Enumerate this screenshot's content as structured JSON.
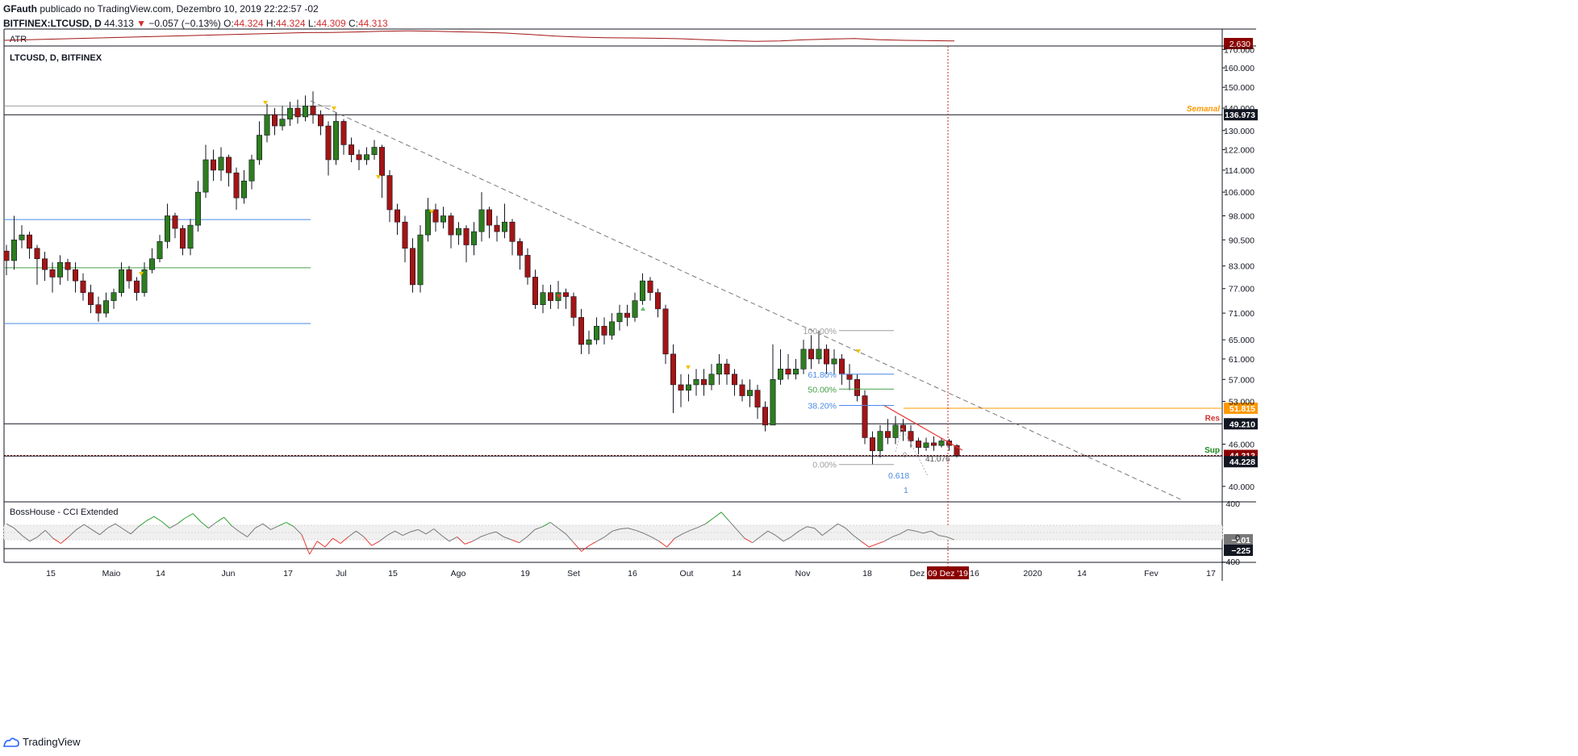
{
  "header": {
    "author": "GFauth",
    "published": "publicado no TradingView.com, Dezembro 10, 2019 22:22:57 -02",
    "symbol": "BITFINEX:LTCUSD, D",
    "last": "44.313",
    "change_arrow": "▼",
    "change": "−0.057 (−0.13%)",
    "o_label": "O:",
    "o": "44.324",
    "h_label": "H:",
    "h": "44.324",
    "l_label": "L:",
    "l": "44.309",
    "c_label": "C:",
    "c": "44.313"
  },
  "footer": {
    "brand": "TradingView",
    "logo_icon": "tradingview-logo-icon"
  },
  "colors": {
    "up": "#2e7d1f",
    "down": "#a31515",
    "grid": "#e0e3eb",
    "axis": "#131722",
    "support_line": "#4a8ae6",
    "mid_line": "#43a047",
    "orange": "#ff9800",
    "dark_red": "#8b0000",
    "cci": "#787878",
    "cci_up": "#2e9e2e",
    "cci_down": "#e53935"
  },
  "chart_data": [
    {
      "type": "line",
      "title": "ATR",
      "series": [
        {
          "name": "ATR",
          "values": [
            7.8,
            7.9,
            8.2,
            8.6,
            8.9,
            8.7,
            8.3,
            8.0,
            7.5,
            6.6,
            5.6,
            5.0,
            4.6,
            4.5,
            4.3,
            4.0,
            3.4,
            2.8,
            2.4,
            2.6,
            3.4,
            3.8,
            4.1,
            3.4,
            3.0,
            2.8,
            2.63
          ]
        }
      ],
      "last_value_label": "2.630"
    },
    {
      "type": "candlestick",
      "title": "LTCUSD, D, BITFINEX",
      "yscale": "log",
      "ylim": [
        38,
        172
      ],
      "y_ticks": [
        "170.000",
        "160.000",
        "150.000",
        "140.000",
        "130.000",
        "122.000",
        "114.000",
        "106.000",
        "98.000",
        "90.500",
        "83.000",
        "77.000",
        "71.000",
        "65.000",
        "61.000",
        "57.000",
        "53.000",
        "46.000",
        "40.000"
      ],
      "x_ticks": [
        "15",
        "Maio",
        "14",
        "Jun",
        "17",
        "Jul",
        "15",
        "Ago",
        "19",
        "Set",
        "16",
        "Out",
        "14",
        "Nov",
        "18",
        "Dez",
        "16",
        "2020",
        "14",
        "Fev",
        "17"
      ],
      "cursor_date_label": "09 Dez '19",
      "price_labels": [
        {
          "value": 136.973,
          "text": "136.973",
          "color": "#131722",
          "tag": "Semanal",
          "tag_color": "#ff9800"
        },
        {
          "value": 51.815,
          "text": "51.815",
          "color": "#ff9800"
        },
        {
          "value": 49.21,
          "text": "49.210",
          "color": "#131722",
          "tag": "Res",
          "tag_color": "#d32f2f"
        },
        {
          "value": 44.313,
          "text": "44.313",
          "color": "#8b0000"
        },
        {
          "value": 44.228,
          "text": "44.228",
          "color": "#131722",
          "tag": "Sup",
          "tag_color": "#1b8a1b"
        }
      ],
      "horizontal_levels": [
        {
          "value": 96.8,
          "color": "#4a8ae6"
        },
        {
          "value": 82.5,
          "color": "#43a047"
        },
        {
          "value": 68.6,
          "color": "#4a8ae6"
        }
      ],
      "fib_levels": [
        {
          "label": "100.00%",
          "value": 67.0,
          "color": "#9e9e9e"
        },
        {
          "label": "61.80%",
          "value": 58.0,
          "color": "#4a8ae6"
        },
        {
          "label": "50.00%",
          "value": 55.2,
          "color": "#43a047"
        },
        {
          "label": "38.20%",
          "value": 52.3,
          "color": "#4a8ae6"
        },
        {
          "label": "0.00%",
          "value": 43.0,
          "color": "#9e9e9e"
        }
      ],
      "annotations": [
        "41.076",
        "0.618",
        "1",
        "0"
      ],
      "candles": [
        [
          87.2,
          84.5,
          89.0,
          80.5
        ],
        [
          84.5,
          90.5,
          98.0,
          82.0
        ],
        [
          90.5,
          92.0,
          95.0,
          88.0
        ],
        [
          92.0,
          88.0,
          93.0,
          85.0
        ],
        [
          88.0,
          85.0,
          89.0,
          78.0
        ],
        [
          85.0,
          82.0,
          87.0,
          79.0
        ],
        [
          82.0,
          80.0,
          84.0,
          76.0
        ],
        [
          80.0,
          84.0,
          86.0,
          78.0
        ],
        [
          84.0,
          82.0,
          85.0,
          79.0
        ],
        [
          82.0,
          79.0,
          84.0,
          76.0
        ],
        [
          79.0,
          76.0,
          81.0,
          74.0
        ],
        [
          76.0,
          73.0,
          78.0,
          71.0
        ],
        [
          73.0,
          71.0,
          75.0,
          69.0
        ],
        [
          71.0,
          74.0,
          76.0,
          70.0
        ],
        [
          74.0,
          76.0,
          77.0,
          72.0
        ],
        [
          76.0,
          82.0,
          84.0,
          75.0
        ],
        [
          82.0,
          79.0,
          83.0,
          77.0
        ],
        [
          79.0,
          76.0,
          80.0,
          74.0
        ],
        [
          76.0,
          82.0,
          84.0,
          75.0
        ],
        [
          82.0,
          85.0,
          88.0,
          81.0
        ],
        [
          85.0,
          90.0,
          92.0,
          84.0
        ],
        [
          90.0,
          98.0,
          102.0,
          88.0
        ],
        [
          98.0,
          94.0,
          99.0,
          91.0
        ],
        [
          94.0,
          88.0,
          95.0,
          86.0
        ],
        [
          88.0,
          95.0,
          97.0,
          86.0
        ],
        [
          95.0,
          106.0,
          110.0,
          93.0
        ],
        [
          106.0,
          118.0,
          124.0,
          104.0
        ],
        [
          118.0,
          114.0,
          122.0,
          110.0
        ],
        [
          114.0,
          119.0,
          123.0,
          110.0
        ],
        [
          119.0,
          113.0,
          120.0,
          108.0
        ],
        [
          113.0,
          104.0,
          115.0,
          100.0
        ],
        [
          104.0,
          110.0,
          114.0,
          102.0
        ],
        [
          110.0,
          118.0,
          120.0,
          107.0
        ],
        [
          118.0,
          128.0,
          134.0,
          116.0
        ],
        [
          128.0,
          137.0,
          142.0,
          125.0
        ],
        [
          137.0,
          132.0,
          140.0,
          128.0
        ],
        [
          132.0,
          135.0,
          141.0,
          130.0
        ],
        [
          135.0,
          140.0,
          143.0,
          132.0
        ],
        [
          140.0,
          136.0,
          144.0,
          133.0
        ],
        [
          136.0,
          141.0,
          146.0,
          134.0
        ],
        [
          141.0,
          137.0,
          148.0,
          133.0
        ],
        [
          137.0,
          132.0,
          139.0,
          128.0
        ],
        [
          132.0,
          118.0,
          134.0,
          112.0
        ],
        [
          118.0,
          134.0,
          138.0,
          116.0
        ],
        [
          134.0,
          124.0,
          135.0,
          120.0
        ],
        [
          124.0,
          120.0,
          127.0,
          117.0
        ],
        [
          120.0,
          118.0,
          122.0,
          114.0
        ],
        [
          118.0,
          120.0,
          123.0,
          116.0
        ],
        [
          120.0,
          123.0,
          126.0,
          118.0
        ],
        [
          123.0,
          112.0,
          124.0,
          104.0
        ],
        [
          112.0,
          100.0,
          114.0,
          96.0
        ],
        [
          100.0,
          96.0,
          102.0,
          92.0
        ],
        [
          96.0,
          88.0,
          98.0,
          84.0
        ],
        [
          88.0,
          78.0,
          91.0,
          76.0
        ],
        [
          78.0,
          92.0,
          95.0,
          76.0
        ],
        [
          92.0,
          100.0,
          104.0,
          90.0
        ],
        [
          100.0,
          96.0,
          102.0,
          93.0
        ],
        [
          96.0,
          98.0,
          101.0,
          94.0
        ],
        [
          98.0,
          92.0,
          99.0,
          88.0
        ],
        [
          92.0,
          94.0,
          96.0,
          89.0
        ],
        [
          94.0,
          89.0,
          95.0,
          84.0
        ],
        [
          89.0,
          93.0,
          96.0,
          86.0
        ],
        [
          93.0,
          100.0,
          106.0,
          90.0
        ],
        [
          100.0,
          95.0,
          101.0,
          91.0
        ],
        [
          95.0,
          93.0,
          98.0,
          90.0
        ],
        [
          93.0,
          96.0,
          102.0,
          91.0
        ],
        [
          96.0,
          90.0,
          97.0,
          86.0
        ],
        [
          90.0,
          86.0,
          91.0,
          82.0
        ],
        [
          86.0,
          80.0,
          88.0,
          78.0
        ],
        [
          80.0,
          73.0,
          82.0,
          72.0
        ],
        [
          73.0,
          76.0,
          78.0,
          71.0
        ],
        [
          76.0,
          74.0,
          78.0,
          72.0
        ],
        [
          74.0,
          76.0,
          79.0,
          72.0
        ],
        [
          76.0,
          75.0,
          77.0,
          72.0
        ],
        [
          75.0,
          70.0,
          76.0,
          68.0
        ],
        [
          70.0,
          64.0,
          72.0,
          62.0
        ],
        [
          64.0,
          65.0,
          67.0,
          62.0
        ],
        [
          65.0,
          68.0,
          70.0,
          64.0
        ],
        [
          68.0,
          66.0,
          70.0,
          64.0
        ],
        [
          66.0,
          69.0,
          71.0,
          65.0
        ],
        [
          69.0,
          71.0,
          73.0,
          67.0
        ],
        [
          71.0,
          70.0,
          73.0,
          68.0
        ],
        [
          70.0,
          74.0,
          76.0,
          69.0
        ],
        [
          74.0,
          79.0,
          81.0,
          73.0
        ],
        [
          79.0,
          76.0,
          80.0,
          74.0
        ],
        [
          76.0,
          72.0,
          77.0,
          70.0
        ],
        [
          72.0,
          62.0,
          73.0,
          60.0
        ],
        [
          62.0,
          56.0,
          64.0,
          51.0
        ],
        [
          56.0,
          55.0,
          58.0,
          52.0
        ],
        [
          55.0,
          56.0,
          58.0,
          53.0
        ],
        [
          56.0,
          57.0,
          59.0,
          54.0
        ],
        [
          57.0,
          56.0,
          59.0,
          54.0
        ],
        [
          56.0,
          58.0,
          60.0,
          55.0
        ],
        [
          58.0,
          60.0,
          62.0,
          56.0
        ],
        [
          60.0,
          58.0,
          61.0,
          56.0
        ],
        [
          58.0,
          56.0,
          59.0,
          54.0
        ],
        [
          56.0,
          54.0,
          57.0,
          53.0
        ],
        [
          54.0,
          55.0,
          57.0,
          52.0
        ],
        [
          55.0,
          52.0,
          56.0,
          50.0
        ],
        [
          52.0,
          49.0,
          53.0,
          48.0
        ],
        [
          49.0,
          57.0,
          64.0,
          49.0
        ],
        [
          57.0,
          59.0,
          63.0,
          56.0
        ],
        [
          59.0,
          58.0,
          62.0,
          57.0
        ],
        [
          58.0,
          59.0,
          61.0,
          57.0
        ],
        [
          59.0,
          63.0,
          65.0,
          58.0
        ],
        [
          63.0,
          61.0,
          66.0,
          59.0
        ],
        [
          61.0,
          63.0,
          67.0,
          60.0
        ],
        [
          63.0,
          60.0,
          64.0,
          58.0
        ],
        [
          60.0,
          61.0,
          63.0,
          58.0
        ],
        [
          61.0,
          58.0,
          62.0,
          56.0
        ],
        [
          58.0,
          57.0,
          60.0,
          55.0
        ],
        [
          57.0,
          54.0,
          58.0,
          53.0
        ],
        [
          54.0,
          47.0,
          55.0,
          46.0
        ],
        [
          47.0,
          45.0,
          48.0,
          43.0
        ],
        [
          45.0,
          48.0,
          49.0,
          44.0
        ],
        [
          48.0,
          47.0,
          50.0,
          46.0
        ],
        [
          47.0,
          49.0,
          50.5,
          46.0
        ],
        [
          49.0,
          48.0,
          50.0,
          46.5
        ],
        [
          48.0,
          46.5,
          49.0,
          45.5
        ],
        [
          46.5,
          45.5,
          47.0,
          44.5
        ],
        [
          45.5,
          46.2,
          47.0,
          45.0
        ],
        [
          46.2,
          45.8,
          47.2,
          45.0
        ],
        [
          45.8,
          46.5,
          47.0,
          45.5
        ],
        [
          46.5,
          45.8,
          46.8,
          45.0
        ],
        [
          45.8,
          44.313,
          46.0,
          44.0
        ]
      ]
    },
    {
      "type": "line",
      "title": "BossHouse - CCI Extended",
      "ylim": [
        -400,
        400
      ],
      "y_ticks": [
        "400",
        "0",
        "−400"
      ],
      "reference_levels": [
        100,
        -100
      ],
      "series": [
        {
          "name": "CCI",
          "values": [
            120,
            60,
            -40,
            -120,
            -60,
            30,
            -80,
            -150,
            -60,
            40,
            110,
            40,
            -30,
            60,
            120,
            50,
            -20,
            80,
            160,
            220,
            150,
            60,
            120,
            200,
            260,
            150,
            60,
            140,
            210,
            90,
            10,
            -60,
            60,
            120,
            40,
            90,
            140,
            80,
            -30,
            -300,
            -120,
            -200,
            -80,
            -150,
            -60,
            20,
            -60,
            -180,
            -120,
            -40,
            20,
            -40,
            10,
            40,
            -20,
            50,
            -40,
            -120,
            -60,
            -160,
            -120,
            -60,
            -20,
            10,
            -60,
            -100,
            -140,
            -60,
            40,
            80,
            140,
            60,
            -20,
            -140,
            -260,
            -180,
            -120,
            -60,
            20,
            50,
            60,
            30,
            -10,
            -60,
            -120,
            -200,
            -80,
            -20,
            30,
            70,
            120,
            200,
            280,
            160,
            40,
            -80,
            -140,
            -60,
            20,
            -40,
            -120,
            -60,
            20,
            80,
            60,
            -40,
            40,
            120,
            60,
            -40,
            -120,
            -200,
            -160,
            -120,
            -60,
            -20,
            40,
            20,
            -10,
            20,
            -40,
            -60,
            -101
          ]
        }
      ],
      "value_labels": [
        {
          "value": -101,
          "text": "−101",
          "color": "#131722"
        },
        {
          "value": -225,
          "text": "−225",
          "color": "#131722"
        }
      ]
    }
  ]
}
